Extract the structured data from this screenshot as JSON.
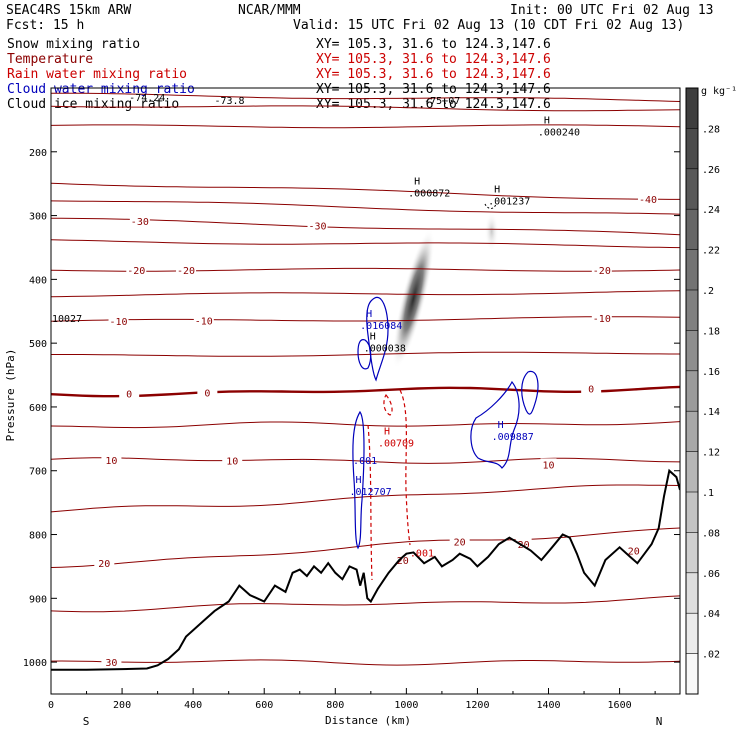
{
  "header": {
    "line1_left": "SEAC4RS 15km ARW",
    "line1_mid": "NCAR/MMM",
    "line1_right": "Init: 00 UTC Fri 02 Aug 13",
    "line2_left": "Fcst:   15 h",
    "line2_right": "Valid: 15 UTC Fri 02 Aug 13 (10 CDT Fri 02 Aug 13)"
  },
  "legend": [
    {
      "name": "Snow mixing ratio",
      "xy": "XY= 105.3, 31.6 to 124.3,147.6",
      "color": "#000000",
      "xy_color": "#000000"
    },
    {
      "name": "Temperature",
      "xy": "XY= 105.3, 31.6 to 124.3,147.6",
      "color": "#8b0000",
      "xy_color": "#cc0000"
    },
    {
      "name": "Rain water mixing ratio",
      "xy": "XY= 105.3, 31.6 to 124.3,147.6",
      "color": "#cc0000",
      "xy_color": "#cc0000"
    },
    {
      "name": "Cloud water mixing ratio",
      "xy": "XY= 105.3, 31.6 to 124.3,147.6",
      "color": "#0000bb",
      "xy_color": "#000000"
    },
    {
      "name": "Cloud ice mixing ratio",
      "xy": "XY= 105.3, 31.6 to 124.3,147.6",
      "color": "#000000",
      "xy_color": "#000000"
    }
  ],
  "colorbar": {
    "unit": "g kg⁻¹",
    "ticks": [
      ".02",
      ".04",
      ".06",
      ".08",
      ".1",
      ".12",
      ".14",
      ".16",
      ".18",
      ".2",
      ".22",
      ".24",
      ".26",
      ".28"
    ],
    "values": [
      0.02,
      0.04,
      0.06,
      0.08,
      0.1,
      0.12,
      0.14,
      0.16,
      0.18,
      0.2,
      0.22,
      0.24,
      0.26,
      0.28,
      0.3
    ]
  },
  "chart_data": {
    "type": "cross-section",
    "xlabel": "Distance (km)",
    "ylabel": "Pressure (hPa)",
    "xlim": [
      0,
      1770
    ],
    "ylim": [
      100,
      1050
    ],
    "x_ticks": [
      "0",
      "200",
      "400",
      "600",
      "800",
      "1000",
      "1200",
      "1400",
      "1600"
    ],
    "x_tick_values": [
      0,
      200,
      400,
      600,
      800,
      1000,
      1200,
      1400,
      1600
    ],
    "y_ticks": [
      "200",
      "300",
      "400",
      "500",
      "600",
      "700",
      "800",
      "900",
      "1000"
    ],
    "y_tick_values": [
      200,
      300,
      400,
      500,
      600,
      700,
      800,
      900,
      1000
    ],
    "end_labels": {
      "left": "S",
      "right": "N"
    },
    "terrain": {
      "x": [
        0,
        100,
        200,
        270,
        300,
        330,
        360,
        380,
        400,
        430,
        460,
        500,
        530,
        560,
        600,
        630,
        660,
        680,
        700,
        720,
        740,
        760,
        780,
        800,
        820,
        840,
        860,
        870,
        880,
        890,
        900,
        920,
        950,
        980,
        1000,
        1020,
        1050,
        1080,
        1100,
        1130,
        1150,
        1180,
        1200,
        1230,
        1260,
        1290,
        1320,
        1350,
        1380,
        1410,
        1440,
        1460,
        1480,
        1500,
        1530,
        1560,
        1600,
        1630,
        1650,
        1670,
        1690,
        1710,
        1725,
        1740,
        1760,
        1770
      ],
      "p": [
        1012,
        1012,
        1011,
        1010,
        1005,
        995,
        980,
        960,
        950,
        935,
        920,
        905,
        880,
        895,
        905,
        880,
        890,
        860,
        855,
        865,
        850,
        860,
        845,
        860,
        870,
        850,
        855,
        880,
        860,
        900,
        905,
        885,
        860,
        840,
        830,
        828,
        845,
        835,
        850,
        840,
        830,
        838,
        850,
        835,
        815,
        805,
        815,
        825,
        840,
        820,
        800,
        805,
        830,
        860,
        880,
        840,
        820,
        835,
        845,
        830,
        815,
        790,
        740,
        700,
        710,
        730
      ]
    },
    "temperature": {
      "color": "#8b0000",
      "levels": [
        {
          "t": -70,
          "p_left": 110,
          "p_right": 120,
          "label": ""
        },
        {
          "t": -60,
          "p_left": 127,
          "p_right": 135,
          "label": ""
        },
        {
          "t": -50,
          "p_left": 160,
          "p_right": 160,
          "label": ""
        },
        {
          "t": -40,
          "p_left": 248,
          "p_right": 275,
          "label": "-40",
          "label_x": 1680
        },
        {
          "t": -35,
          "p_left": 275,
          "p_right": 300,
          "label": ""
        },
        {
          "t": -30,
          "p_left": 305,
          "p_right": 330,
          "label": "-30",
          "label_x": 250
        },
        {
          "t": -30,
          "p_left": 305,
          "p_right": 330,
          "label": "-30",
          "label_x": 750
        },
        {
          "t": -25,
          "p_left": 340,
          "p_right": 348,
          "label": ""
        },
        {
          "t": -20,
          "p_left": 385,
          "p_right": 385,
          "label": "-20",
          "label_x": 240
        },
        {
          "t": -20,
          "p_left": 385,
          "p_right": 385,
          "label": "-20",
          "label_x": 380
        },
        {
          "t": -20,
          "p_left": 385,
          "p_right": 385,
          "label": "-20",
          "label_x": 1550
        },
        {
          "t": -15,
          "p_left": 425,
          "p_right": 420,
          "label": ""
        },
        {
          "t": -10,
          "p_left": 466,
          "p_right": 460,
          "label": "-10",
          "label_x": 190
        },
        {
          "t": -10,
          "p_left": 466,
          "p_right": 460,
          "label": "-10",
          "label_x": 430
        },
        {
          "t": -10,
          "p_left": 466,
          "p_right": 460,
          "label": "-10",
          "label_x": 1550
        },
        {
          "t": -5,
          "p_left": 520,
          "p_right": 515,
          "label": ""
        },
        {
          "t": 0,
          "p_left": 580,
          "p_right": 570,
          "label": "0",
          "label_x": 220,
          "bold": true
        },
        {
          "t": 0,
          "p_left": 580,
          "p_right": 570,
          "label": "0",
          "label_x": 440,
          "bold": true
        },
        {
          "t": 0,
          "p_left": 580,
          "p_right": 570,
          "label": "0",
          "label_x": 1520,
          "bold": true
        },
        {
          "t": 5,
          "p_left": 630,
          "p_right": 625,
          "label": ""
        },
        {
          "t": 10,
          "p_left": 683,
          "p_right": 685,
          "label": "10",
          "label_x": 170
        },
        {
          "t": 10,
          "p_left": 683,
          "p_right": 685,
          "label": "10",
          "label_x": 510
        },
        {
          "t": 15,
          "p_left": 765,
          "p_right": 720,
          "label": ""
        },
        {
          "t": 20,
          "p_left": 850,
          "p_right": 790,
          "label": "20",
          "label_x": 150
        },
        {
          "t": 20,
          "p_left": 850,
          "p_right": 790,
          "label": "20",
          "label_x": 1150
        },
        {
          "t": 25,
          "p_left": 918,
          "p_right": 900,
          "label": ""
        },
        {
          "t": 30,
          "p_left": 1000,
          "p_right": 1000,
          "label": "30",
          "label_x": 170
        }
      ]
    },
    "extra_temp_labels": [
      {
        "text": "20",
        "x": 990,
        "p": 840
      },
      {
        "text": "20",
        "x": 1330,
        "p": 815
      },
      {
        "text": "20",
        "x": 1640,
        "p": 825
      },
      {
        "text": "10",
        "x": 1400,
        "p": 690
      }
    ],
    "snow": [
      {
        "x": 1020,
        "p": 430,
        "max": 0.28
      },
      {
        "x": 1240,
        "p": 325,
        "max": 0.06
      }
    ],
    "extrema": [
      {
        "text": "H",
        "value": ".000872",
        "x": 1005,
        "p": 265,
        "color": "#000000"
      },
      {
        "text": "H",
        "value": ".001237",
        "x": 1230,
        "p": 278,
        "color": "#000000"
      },
      {
        "text": "H",
        "value": ".000240",
        "x": 1370,
        "p": 170,
        "color": "#000000"
      },
      {
        "text": "H",
        "value": ".016084",
        "x": 870,
        "p": 473,
        "color": "#0000bb"
      },
      {
        "text": "H",
        "value": ".000038",
        "x": 880,
        "p": 508,
        "color": "#000000"
      },
      {
        "text": "H",
        "value": ".009887",
        "x": 1240,
        "p": 647,
        "color": "#0000bb"
      },
      {
        "text": "H",
        "value": ".00709",
        "x": 920,
        "p": 657,
        "color": "#cc0000"
      },
      {
        "text": "",
        "value": ".001",
        "x": 850,
        "p": 685,
        "color": "#0000bb"
      },
      {
        "text": "H",
        "value": ".012707",
        "x": 840,
        "p": 733,
        "color": "#0000bb"
      },
      {
        "text": "",
        "value": ".001",
        "x": 1010,
        "p": 830,
        "color": "#cc0000"
      },
      {
        "text": "",
        "value": "10027",
        "x": 0,
        "p": 462,
        "color": "#000000"
      },
      {
        "text": "",
        "value": "-74.24",
        "x": 220,
        "p": 116,
        "color": "#000000"
      },
      {
        "text": "",
        "value": "-73.8",
        "x": 460,
        "p": 120,
        "color": "#000000"
      },
      {
        "text": "",
        "value": "-75.07",
        "x": 1050,
        "p": 120,
        "color": "#000000"
      }
    ]
  }
}
